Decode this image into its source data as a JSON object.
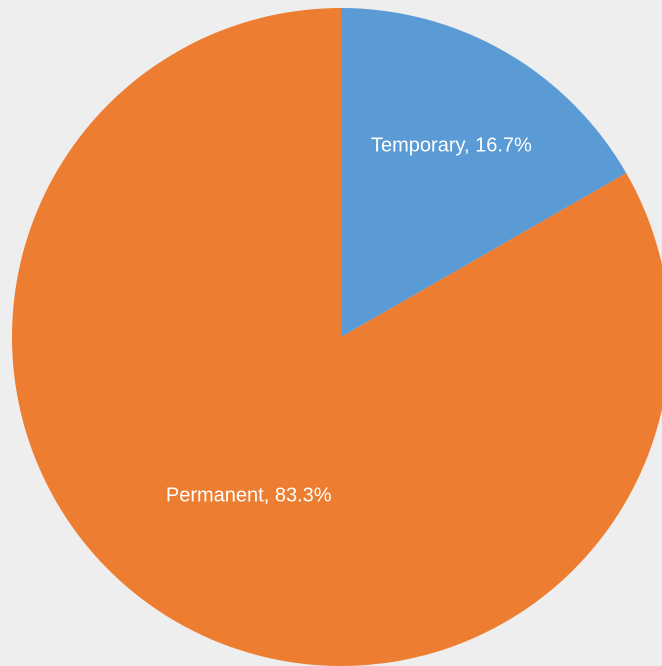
{
  "chart_data": {
    "type": "pie",
    "values": [
      16.7,
      83.3
    ],
    "value_labels": [
      "Temporary, 16.7%",
      "Permanent, 83.3%"
    ],
    "colors": [
      "#5b9bd5",
      "#ed7d31"
    ]
  }
}
